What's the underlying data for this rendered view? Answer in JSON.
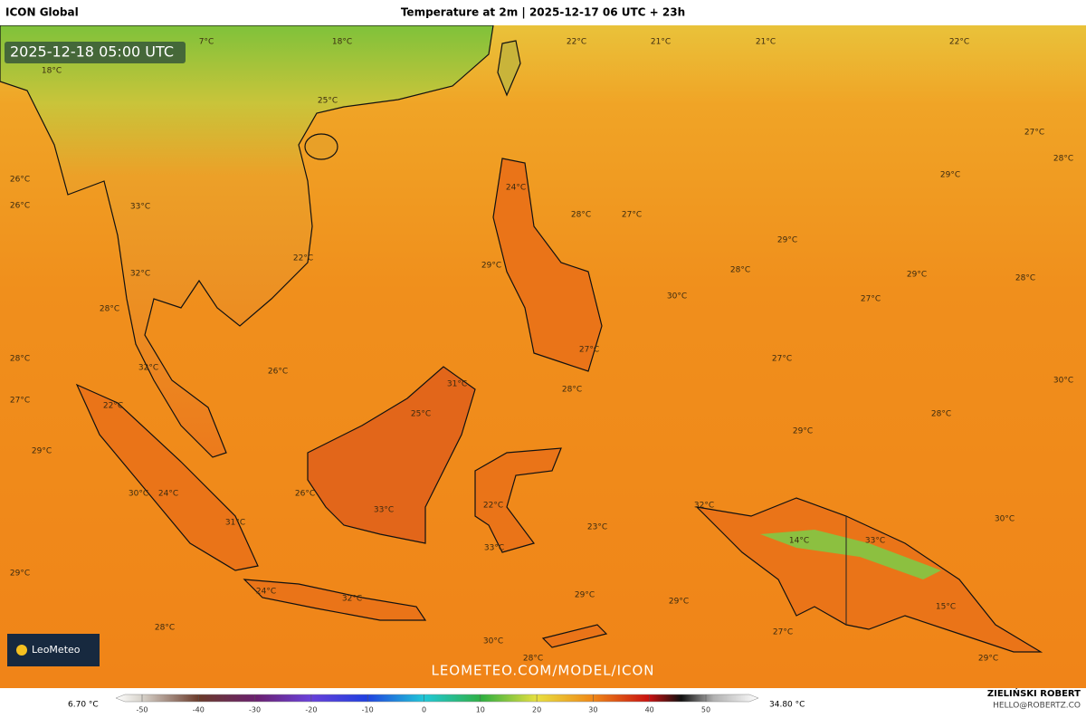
{
  "header": {
    "left": "ICON Global",
    "title": "Temperature at 2m | 2025-12-17 06 UTC + 23h"
  },
  "timestamp": "2025-12-18 05:00 UTC",
  "logo": "LeoMeteo",
  "watermark": "LEOMETEO.COM/MODEL/ICON",
  "map_labels": [
    "7°C",
    "18°C",
    "22°C",
    "21°C",
    "21°C",
    "22°C",
    "18°C",
    "25°C",
    "27°C",
    "28°C",
    "26°C",
    "29°C",
    "24°C",
    "26°C",
    "33°C",
    "28°C",
    "27°C",
    "29°C",
    "22°C",
    "29°C",
    "28°C",
    "29°C",
    "28°C",
    "32°C",
    "30°C",
    "27°C",
    "28°C",
    "27°C",
    "28°C",
    "27°C",
    "26°C",
    "32°C",
    "31°C",
    "28°C",
    "30°C",
    "27°C",
    "22°C",
    "25°C",
    "28°C",
    "29°C",
    "29°C",
    "30°C",
    "24°C",
    "26°C",
    "22°C",
    "32°C",
    "33°C",
    "31°C",
    "23°C",
    "30°C",
    "33°C",
    "14°C",
    "33°C",
    "29°C",
    "24°C",
    "32°C",
    "29°C",
    "29°C",
    "15°C",
    "28°C",
    "27°C",
    "30°C",
    "28°C",
    "29°C"
  ],
  "legend": {
    "min": "6.70 °C",
    "max": "34.80 °C",
    "ticks": [
      -50,
      -40,
      -30,
      -20,
      -10,
      0,
      10,
      20,
      30,
      40,
      50
    ]
  },
  "credit": {
    "name": "ZIELIŃSKI ROBERT",
    "email": "HELLO@ROBERTZ.CO"
  }
}
